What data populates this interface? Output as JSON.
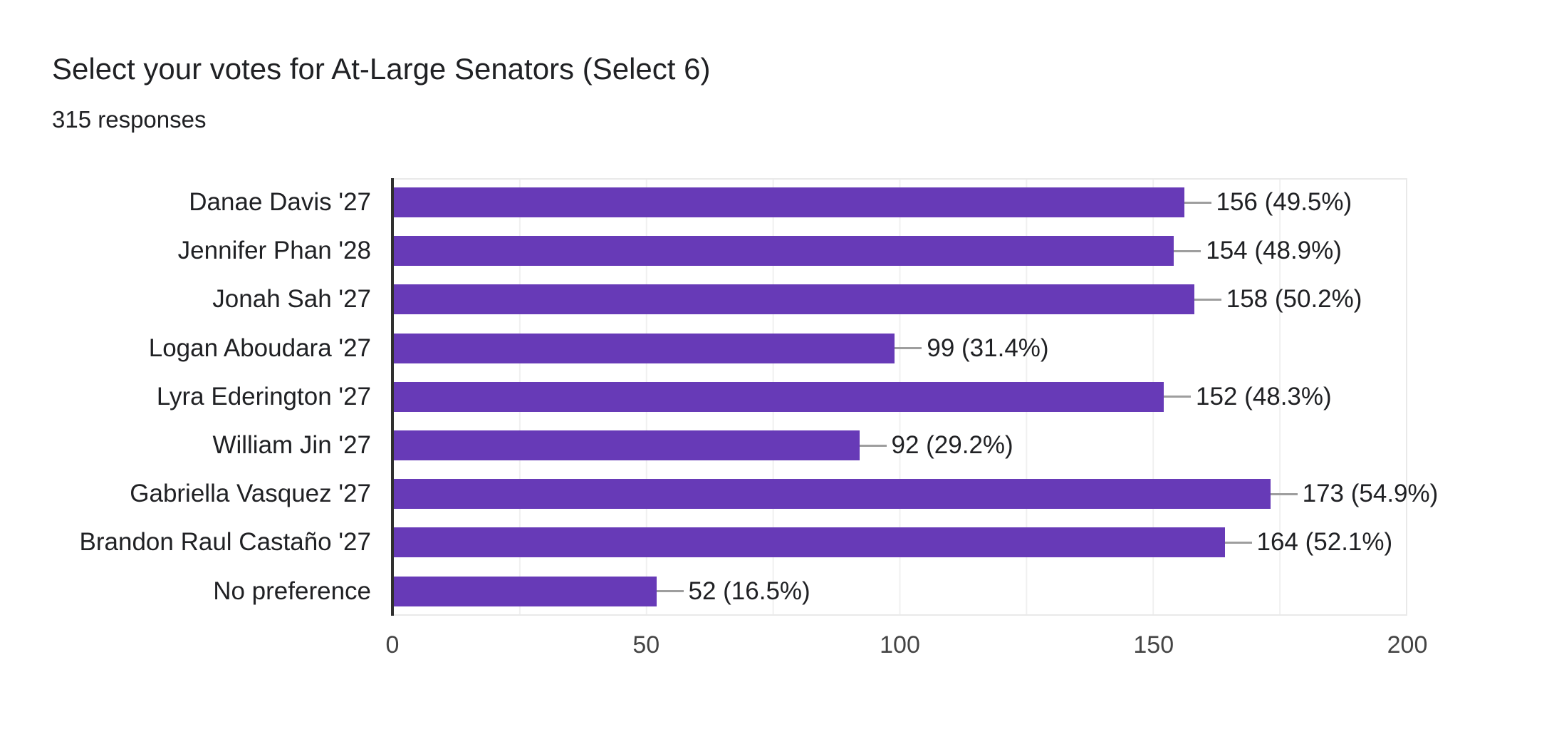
{
  "header": {
    "title": "Select your votes for At-Large Senators (Select 6)",
    "subtitle": "315 responses"
  },
  "chart_data": {
    "type": "bar",
    "orientation": "horizontal",
    "title": "Select your votes for At-Large Senators (Select 6)",
    "subtitle": "315 responses",
    "total_responses": 315,
    "categories": [
      "Danae Davis '27",
      "Jennifer Phan '28",
      "Jonah Sah '27",
      "Logan Aboudara '27",
      "Lyra Ederington '27",
      "William Jin '27",
      "Gabriella Vasquez '27",
      "Brandon Raul Castaño '27",
      "No preference"
    ],
    "values": [
      156,
      154,
      158,
      99,
      152,
      92,
      173,
      164,
      52
    ],
    "value_labels": [
      "156 (49.5%)",
      "154 (48.9%)",
      "158 (50.2%)",
      "99 (31.4%)",
      "152 (48.3%)",
      "92 (29.2%)",
      "173 (54.9%)",
      "164 (52.1%)",
      "52 (16.5%)"
    ],
    "xlabel": "",
    "ylabel": "",
    "xlim": [
      0,
      200
    ],
    "x_ticks": [
      0,
      50,
      100,
      150,
      200
    ],
    "grid_step": 25,
    "grid": true,
    "legend": false,
    "colors": {
      "bar": "#673ab7",
      "grid": "#f0f0f0",
      "frame": "#e9e9e9",
      "axis": "#2f2f2f",
      "leader_line": "#9e9e9e",
      "text": "#202124",
      "tick_text": "#444444",
      "background": "#ffffff"
    }
  }
}
